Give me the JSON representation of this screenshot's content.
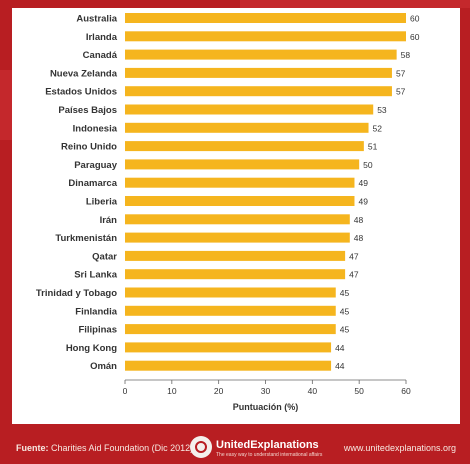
{
  "chart_data": {
    "type": "bar",
    "orientation": "horizontal",
    "categories": [
      "Australia",
      "Irlanda",
      "Canadá",
      "Nueva Zelanda",
      "Estados Unidos",
      "Países Bajos",
      "Indonesia",
      "Reino Unido",
      "Paraguay",
      "Dinamarca",
      "Liberia",
      "Irán",
      "Turkmenistán",
      "Qatar",
      "Sri Lanka",
      "Trinidad y Tobago",
      "Finlandia",
      "Filipinas",
      "Hong Kong",
      "Omán"
    ],
    "values": [
      60,
      60,
      58,
      57,
      57,
      53,
      52,
      51,
      50,
      49,
      49,
      48,
      48,
      47,
      47,
      45,
      45,
      45,
      44,
      44
    ],
    "xlabel": "Puntuación (%)",
    "xlim": [
      0,
      60
    ],
    "xticks": [
      0,
      10,
      20,
      30,
      40,
      50,
      60
    ],
    "grid": false,
    "data_labels": true,
    "colors": {
      "background": "#b81e22",
      "bar": "#f5b51e",
      "panel": "#ffffff"
    }
  },
  "footer": {
    "source_label": "Fuente:",
    "source_text": "Charities Aid Foundation (Dic 2012)",
    "brand_name": "UnitedExplanations",
    "brand_tagline": "The easy way to understand international affairs",
    "website": "www.unitedexplanations.org"
  }
}
